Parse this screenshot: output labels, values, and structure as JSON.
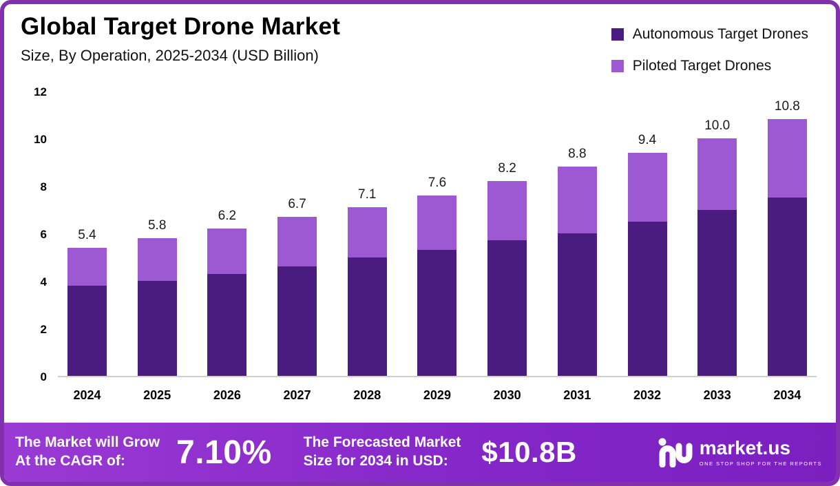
{
  "header": {
    "title": "Global Target Drone Market",
    "subtitle": "Size, By Operation, 2025-2034 (USD Billion)"
  },
  "legend": [
    {
      "label": "Autonomous Target Drones",
      "color": "#4b1c7f"
    },
    {
      "label": "Piloted Target Drones",
      "color": "#9c59d1"
    }
  ],
  "chart_data": {
    "type": "bar",
    "stacked": true,
    "title": "Global Target Drone Market",
    "subtitle": "Size, By Operation, 2025-2034 (USD Billion)",
    "categories": [
      "2024",
      "2025",
      "2026",
      "2027",
      "2028",
      "2029",
      "2030",
      "2031",
      "2032",
      "2033",
      "2034"
    ],
    "series": [
      {
        "name": "Autonomous Target Drones",
        "color": "#4b1c7f",
        "values": [
          3.8,
          4.0,
          4.3,
          4.6,
          5.0,
          5.3,
          5.7,
          6.0,
          6.5,
          7.0,
          7.5
        ]
      },
      {
        "name": "Piloted Target Drones",
        "color": "#9c59d1",
        "values": [
          1.6,
          1.8,
          1.9,
          2.1,
          2.1,
          2.3,
          2.5,
          2.8,
          2.9,
          3.0,
          3.3
        ]
      }
    ],
    "totals": [
      5.4,
      5.8,
      6.2,
      6.7,
      7.1,
      7.6,
      8.2,
      8.8,
      9.4,
      10.0,
      10.8
    ],
    "total_labels": [
      "5.4",
      "5.8",
      "6.2",
      "6.7",
      "7.1",
      "7.6",
      "8.2",
      "8.8",
      "9.4",
      "10.0",
      "10.8"
    ],
    "xlabel": "",
    "ylabel": "",
    "ylim": [
      0,
      12
    ],
    "yticks": [
      0,
      2,
      4,
      6,
      8,
      10,
      12
    ],
    "ytick_labels": [
      "0",
      "2",
      "4",
      "6",
      "8",
      "10",
      "12"
    ],
    "grid": false,
    "legend_position": "top-right"
  },
  "footer": {
    "cagr_line1": "The Market will Grow",
    "cagr_line2": "At the CAGR of:",
    "cagr_value": "7.10%",
    "forecast_line1": "The Forecasted Market",
    "forecast_line2": "Size for 2034 in USD:",
    "forecast_value": "$10.8B",
    "brand": {
      "name": "market.us",
      "tagline": "ONE STOP SHOP FOR THE REPORTS"
    }
  },
  "colors": {
    "frame_border": "#8230ae",
    "banner_gradient_start": "#9a3ad4",
    "banner_gradient_end": "#7b1fc0",
    "autonomous": "#4b1c7f",
    "piloted": "#9c59d1"
  }
}
